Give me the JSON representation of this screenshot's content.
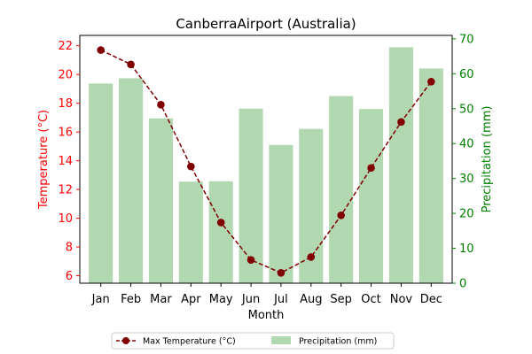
{
  "chart_data": {
    "type": "bar+line",
    "title": "CanberraAirport (Australia)",
    "xlabel": "Month",
    "ylabel_left": "Temperature (°C)",
    "ylabel_right": "Precipitation (mm)",
    "categories": [
      "Jan",
      "Feb",
      "Mar",
      "Apr",
      "May",
      "Jun",
      "Jul",
      "Aug",
      "Sep",
      "Oct",
      "Nov",
      "Dec"
    ],
    "temperature": {
      "name": "Max Temperature (°C)",
      "values": [
        21.7,
        20.7,
        17.9,
        13.6,
        9.7,
        7.1,
        6.2,
        7.3,
        10.2,
        13.5,
        16.7,
        19.5
      ],
      "color": "#800000",
      "ylim": [
        5.48,
        22.72
      ],
      "ticks": [
        6,
        8,
        10,
        12,
        14,
        16,
        18,
        20,
        22
      ]
    },
    "precipitation": {
      "name": "Precipitation (mm)",
      "values": [
        57.2,
        58.7,
        47.2,
        29.1,
        29.2,
        50.0,
        39.6,
        44.2,
        53.6,
        49.9,
        67.6,
        61.5
      ],
      "color": "#b2d8b2",
      "ylim": [
        0,
        70.98
      ],
      "ticks": [
        0,
        10,
        20,
        30,
        40,
        50,
        60,
        70
      ]
    },
    "left_axis_color": "#ff0000",
    "right_axis_color": "#008000",
    "legend": {
      "placement": "bottom-center",
      "entries": [
        "Max Temperature (°C)",
        "Precipitation (mm)"
      ]
    }
  }
}
